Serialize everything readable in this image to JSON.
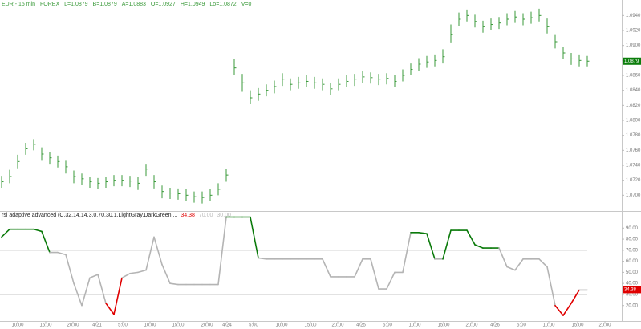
{
  "chart_data": [
    {
      "type": "ohlc",
      "header_items": [
        "EUR - 15 min",
        "FOREX",
        "L=1.0879",
        "B=1.0879",
        "A=1.0883",
        "O=1.0927",
        "H=1.0949",
        "Lo=1.0872",
        "V=0"
      ],
      "color": "#3a9a3a",
      "xlim": [
        -0.2,
        77.3
      ],
      "ylim": [
        1.068,
        1.095
      ],
      "yticks": [
        {
          "value": 1.07,
          "label": "1.0700"
        },
        {
          "value": 1.072,
          "label": "1.0720"
        },
        {
          "value": 1.074,
          "label": "1.0740"
        },
        {
          "value": 1.076,
          "label": "1.0760"
        },
        {
          "value": 1.078,
          "label": "1.0780"
        },
        {
          "value": 1.08,
          "label": "1.0800"
        },
        {
          "value": 1.082,
          "label": "1.0820"
        },
        {
          "value": 1.084,
          "label": "1.0840"
        },
        {
          "value": 1.086,
          "label": "1.0860"
        },
        {
          "value": 1.088,
          "label": "1.0880"
        },
        {
          "value": 1.09,
          "label": "1.0900"
        },
        {
          "value": 1.092,
          "label": "1.0920"
        },
        {
          "value": 1.094,
          "label": "1.0940"
        }
      ],
      "last_value": {
        "value": 1.0879,
        "label": "1.0879"
      },
      "high": [
        1.0726,
        1.0734,
        1.0754,
        1.077,
        1.0775,
        1.0764,
        1.0758,
        1.0753,
        1.0746,
        1.0733,
        1.0729,
        1.0725,
        1.0723,
        1.0725,
        1.0727,
        1.0727,
        1.0726,
        1.0724,
        1.0742,
        1.0727,
        1.0713,
        1.071,
        1.0709,
        1.0708,
        1.0705,
        1.0705,
        1.0708,
        1.0716,
        1.0735,
        1.0882,
        1.0862,
        1.084,
        1.0843,
        1.0848,
        1.0853,
        1.0863,
        1.0856,
        1.0858,
        1.086,
        1.0858,
        1.0856,
        1.085,
        1.0856,
        1.086,
        1.0862,
        1.0866,
        1.0864,
        1.0862,
        1.0863,
        1.086,
        1.0868,
        1.0876,
        1.0883,
        1.0886,
        1.0888,
        1.0895,
        1.0928,
        1.0944,
        1.0948,
        1.0941,
        1.0933,
        1.0936,
        1.0938,
        1.0943,
        1.0946,
        1.0943,
        1.0945,
        1.0949,
        1.0936,
        1.0915,
        1.0898,
        1.089,
        1.0888,
        1.0886
      ],
      "low": [
        1.071,
        1.0716,
        1.0736,
        1.0754,
        1.076,
        1.0746,
        1.0742,
        1.0737,
        1.0729,
        1.0716,
        1.0714,
        1.071,
        1.0708,
        1.071,
        1.0712,
        1.0712,
        1.0711,
        1.0707,
        1.0726,
        1.0709,
        1.0696,
        1.0695,
        1.0694,
        1.0692,
        1.069,
        1.0689,
        1.0692,
        1.07,
        1.0718,
        1.086,
        1.0838,
        1.0822,
        1.0826,
        1.0832,
        1.0836,
        1.0846,
        1.084,
        1.0842,
        1.0844,
        1.0842,
        1.084,
        1.0834,
        1.084,
        1.0844,
        1.0846,
        1.085,
        1.0849,
        1.0847,
        1.0848,
        1.0844,
        1.0852,
        1.086,
        1.0866,
        1.087,
        1.0872,
        1.0876,
        1.0904,
        1.0926,
        1.0932,
        1.0924,
        1.0917,
        1.092,
        1.0922,
        1.0927,
        1.093,
        1.0927,
        1.0929,
        1.0932,
        1.0916,
        1.0896,
        1.0882,
        1.0874,
        1.0872,
        1.0872
      ],
      "close": [
        1.0718,
        1.0725,
        1.0745,
        1.0762,
        1.0768,
        1.0755,
        1.075,
        1.0745,
        1.0738,
        1.0725,
        1.0722,
        1.0718,
        1.0716,
        1.0718,
        1.072,
        1.072,
        1.0719,
        1.0716,
        1.0735,
        1.0718,
        1.0705,
        1.0703,
        1.0702,
        1.07,
        1.0698,
        1.0697,
        1.07,
        1.0708,
        1.0727,
        1.087,
        1.085,
        1.083,
        1.0835,
        1.084,
        1.0845,
        1.0855,
        1.0848,
        1.085,
        1.0852,
        1.085,
        1.0848,
        1.0842,
        1.0848,
        1.0852,
        1.0855,
        1.0858,
        1.0857,
        1.0855,
        1.0856,
        1.0852,
        1.086,
        1.0868,
        1.0875,
        1.0878,
        1.088,
        1.0885,
        1.0915,
        1.0935,
        1.094,
        1.0932,
        1.0925,
        1.0928,
        1.093,
        1.0935,
        1.0938,
        1.0935,
        1.0937,
        1.094,
        1.0925,
        1.0905,
        1.089,
        1.0882,
        1.088,
        1.0879
      ]
    },
    {
      "type": "indicator",
      "title": "rsi adaptive advanced (C,32,14,14,3,0,70,30,1,LightGray,DarkGreen,...",
      "header_values": [
        {
          "value": 34.38,
          "label": "34.38",
          "color": "#e00000"
        },
        {
          "value": 70,
          "label": "70.00",
          "color": "#bbbbbb"
        },
        {
          "value": 30,
          "label": "30.00",
          "color": "#bbbbbb"
        }
      ],
      "colors": {
        "up": "#0a7a0a",
        "mid": "#b4b4b4",
        "down": "#e00000"
      },
      "levels": [
        70,
        30
      ],
      "xlim": [
        -0.2,
        77.3
      ],
      "ylim": [
        6,
        104
      ],
      "yticks": [
        {
          "value": 20,
          "label": "20.00"
        },
        {
          "value": 30,
          "label": "30.00"
        },
        {
          "value": 40,
          "label": "40.00"
        },
        {
          "value": 50,
          "label": "50.00"
        },
        {
          "value": 60,
          "label": "60.00"
        },
        {
          "value": 70,
          "label": "70.00"
        },
        {
          "value": 80,
          "label": "80.00"
        },
        {
          "value": 90,
          "label": "90.00"
        }
      ],
      "xticks": [
        {
          "value": 2.0,
          "label": "10:00"
        },
        {
          "value": 5.5,
          "label": "15:00"
        },
        {
          "value": 8.9,
          "label": "20:00"
        },
        {
          "value": 11.9,
          "label": "4/21"
        },
        {
          "value": 15.1,
          "label": "5:00"
        },
        {
          "value": 18.5,
          "label": "10:00"
        },
        {
          "value": 22.0,
          "label": "15:00"
        },
        {
          "value": 25.6,
          "label": "20:00"
        },
        {
          "value": 28.1,
          "label": "4/24"
        },
        {
          "value": 31.4,
          "label": "5:00"
        },
        {
          "value": 34.9,
          "label": "10:00"
        },
        {
          "value": 38.5,
          "label": "15:00"
        },
        {
          "value": 41.9,
          "label": "20:00"
        },
        {
          "value": 44.8,
          "label": "4/25"
        },
        {
          "value": 48.1,
          "label": "5:00"
        },
        {
          "value": 51.5,
          "label": "10:00"
        },
        {
          "value": 55.1,
          "label": "15:00"
        },
        {
          "value": 58.6,
          "label": "20:00"
        },
        {
          "value": 61.5,
          "label": "4/26"
        },
        {
          "value": 64.8,
          "label": "5:00"
        },
        {
          "value": 68.2,
          "label": "10:00"
        },
        {
          "value": 71.8,
          "label": "15:00"
        },
        {
          "value": 75.2,
          "label": "20:00"
        }
      ],
      "last_value": {
        "value": 34.38,
        "label": "34.38"
      },
      "values": [
        82,
        89,
        89,
        89,
        89,
        87,
        68,
        68,
        66,
        40,
        20,
        45,
        48,
        22,
        12,
        45,
        49,
        50,
        52,
        82,
        57,
        40,
        39,
        39,
        39,
        39,
        39,
        39,
        100,
        100,
        100,
        100,
        63,
        62,
        62,
        62,
        62,
        62,
        62,
        62,
        62,
        46,
        46,
        46,
        46,
        62,
        62,
        35,
        35,
        50,
        50,
        86,
        86,
        85,
        62,
        62,
        88,
        88,
        88,
        75,
        72,
        72,
        72,
        55,
        52,
        62,
        62,
        62,
        55,
        20,
        11,
        22,
        34,
        34
      ]
    }
  ]
}
